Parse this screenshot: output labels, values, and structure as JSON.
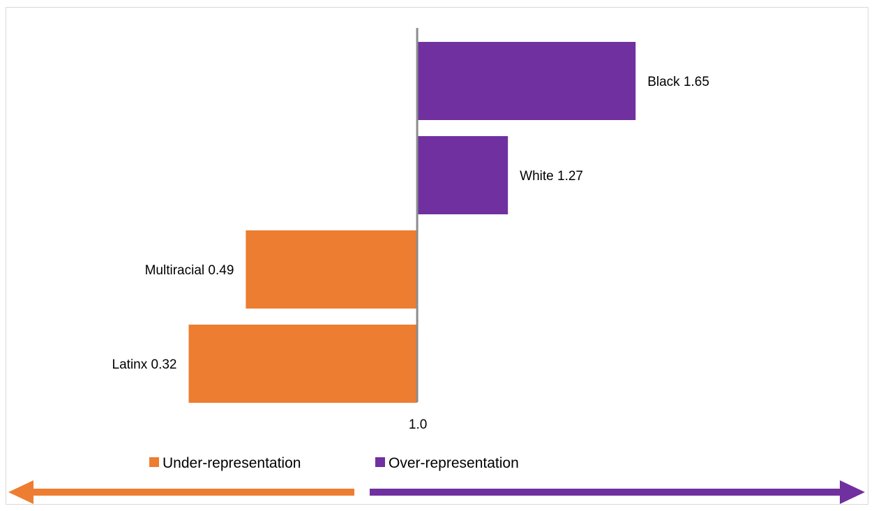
{
  "colors": {
    "under": "#ED7D31",
    "over": "#7030A0",
    "baseline": "#8C8C8C",
    "frame": "#D9D9D9"
  },
  "chart_data": {
    "type": "bar",
    "orientation": "horizontal",
    "title": "",
    "xlabel": "",
    "ylabel": "",
    "baseline_value": 1.0,
    "baseline_label": "1.0",
    "xlim": [
      -0.2,
      2.1
    ],
    "categories": [
      "Black",
      "White",
      "Multiracial",
      "Latinx"
    ],
    "values": [
      1.65,
      1.27,
      0.49,
      0.32
    ],
    "bar_labels": [
      "Black 1.65",
      "White 1.27",
      "Multiracial 0.49",
      "Latinx 0.32"
    ],
    "series": [
      {
        "name": "Under-representation",
        "color": "#ED7D31"
      },
      {
        "name": "Over-representation",
        "color": "#7030A0"
      }
    ],
    "legend_position": "bottom",
    "grid": false
  },
  "arrows": {
    "left": "under-representation",
    "right": "over-representation"
  }
}
